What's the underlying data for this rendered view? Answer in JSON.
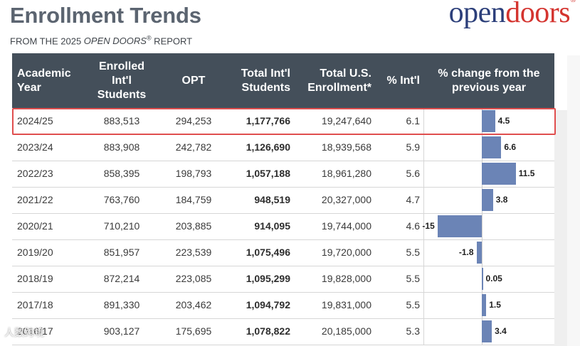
{
  "title": "Enrollment Trends",
  "subtitle_prefix": "FROM THE 2025 ",
  "subtitle_brand": "OPEN DOORS",
  "subtitle_reg": "®",
  "subtitle_suffix": " REPORT",
  "logo": {
    "part1": "open",
    "part2": "doors",
    "reg": "®"
  },
  "watermark": "人数跨境",
  "colors": {
    "header_bg": "#444f5a",
    "bar": "#6b84b6",
    "highlight": "#e04e4e",
    "logo_blue": "#2c3f7a",
    "logo_red": "#d4342f"
  },
  "headers": {
    "year": [
      "Academic",
      "Year"
    ],
    "enrolled": [
      "Enrolled",
      "Int'l",
      "Students"
    ],
    "opt": [
      "OPT"
    ],
    "total_intl": [
      "Total Int'l",
      "Students"
    ],
    "total_us": [
      "Total U.S.",
      "Enrollment*"
    ],
    "pct": [
      "% Int'l"
    ],
    "change": [
      "% change from the",
      "previous year"
    ]
  },
  "rows": [
    {
      "year": "2024/25",
      "enrolled": "883,513",
      "opt": "294,253",
      "total_intl": "1,177,766",
      "total_us": "19,247,640",
      "pct": "6.1",
      "change_label": "4.5"
    },
    {
      "year": "2023/24",
      "enrolled": "883,908",
      "opt": "242,782",
      "total_intl": "1,126,690",
      "total_us": "18,939,568",
      "pct": "5.9",
      "change_label": "6.6"
    },
    {
      "year": "2022/23",
      "enrolled": "858,395",
      "opt": "198,793",
      "total_intl": "1,057,188",
      "total_us": "18,961,280",
      "pct": "5.6",
      "change_label": "11.5"
    },
    {
      "year": "2021/22",
      "enrolled": "763,760",
      "opt": "184,759",
      "total_intl": "948,519",
      "total_us": "20,327,000",
      "pct": "4.7",
      "change_label": "3.8"
    },
    {
      "year": "2020/21",
      "enrolled": "710,210",
      "opt": "203,885",
      "total_intl": "914,095",
      "total_us": "19,744,000",
      "pct": "4.6",
      "change_label": "-15"
    },
    {
      "year": "2019/20",
      "enrolled": "851,957",
      "opt": "223,539",
      "total_intl": "1,075,496",
      "total_us": "19,720,000",
      "pct": "5.5",
      "change_label": "-1.8"
    },
    {
      "year": "2018/19",
      "enrolled": "872,214",
      "opt": "223,085",
      "total_intl": "1,095,299",
      "total_us": "19,828,000",
      "pct": "5.5",
      "change_label": "0.05"
    },
    {
      "year": "2017/18",
      "enrolled": "891,330",
      "opt": "203,462",
      "total_intl": "1,094,792",
      "total_us": "19,831,000",
      "pct": "5.5",
      "change_label": "1.5"
    },
    {
      "year": "2016/17",
      "enrolled": "903,127",
      "opt": "175,695",
      "total_intl": "1,078,822",
      "total_us": "20,185,000",
      "pct": "5.3",
      "change_label": "3.4"
    }
  ],
  "chart_data": {
    "type": "bar",
    "title": "% change from the previous year",
    "orientation": "horizontal",
    "categories": [
      "2024/25",
      "2023/24",
      "2022/23",
      "2021/22",
      "2020/21",
      "2019/20",
      "2018/19",
      "2017/18",
      "2016/17"
    ],
    "values": [
      4.5,
      6.6,
      11.5,
      3.8,
      -15,
      -1.8,
      0.05,
      1.5,
      3.4
    ],
    "xlim": [
      -20,
      20
    ],
    "highlighted_category": "2024/25"
  }
}
